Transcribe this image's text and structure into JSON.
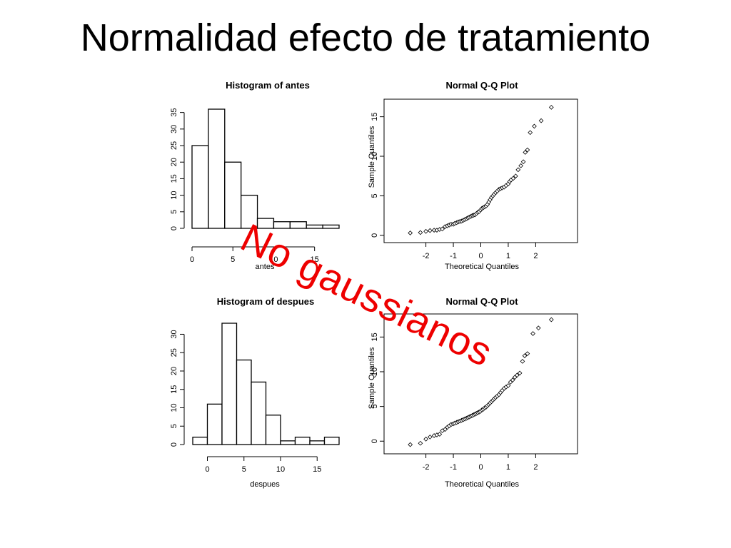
{
  "slide": {
    "title": "Normalidad efecto de tratamiento",
    "annotation": "No gaussianos",
    "annotation_color": "#ee0000"
  },
  "chart_data": [
    {
      "id": "hist_antes",
      "type": "bar",
      "title": "Histogram of antes",
      "xlabel": "antes",
      "ylabel": "",
      "bins": [
        [
          0,
          2
        ],
        [
          2,
          4
        ],
        [
          4,
          6
        ],
        [
          6,
          8
        ],
        [
          8,
          10
        ],
        [
          10,
          12
        ],
        [
          12,
          14
        ],
        [
          14,
          16
        ],
        [
          16,
          18
        ]
      ],
      "values": [
        25,
        36,
        20,
        10,
        3,
        2,
        2,
        1,
        1
      ],
      "xlim": [
        0,
        18
      ],
      "ylim": [
        0,
        36
      ],
      "xticks": [
        0,
        5,
        10,
        15
      ],
      "yticks": [
        0,
        5,
        10,
        15,
        20,
        25,
        30,
        35
      ],
      "grid": false
    },
    {
      "id": "qq_antes",
      "type": "scatter",
      "title": "Normal Q-Q Plot",
      "xlabel": "Theoretical Quantiles",
      "ylabel": "Sample Quantiles",
      "xlim": [
        -2.9,
        2.9
      ],
      "ylim": [
        -0.2,
        16.5
      ],
      "xticks": [
        -2,
        -1,
        0,
        1,
        2
      ],
      "yticks": [
        0,
        5,
        10,
        15
      ],
      "points": [
        [
          -2.57,
          0.3
        ],
        [
          -2.2,
          0.35
        ],
        [
          -2.0,
          0.5
        ],
        [
          -1.85,
          0.6
        ],
        [
          -1.7,
          0.65
        ],
        [
          -1.6,
          0.65
        ],
        [
          -1.5,
          0.75
        ],
        [
          -1.4,
          0.8
        ],
        [
          -1.3,
          1.1
        ],
        [
          -1.22,
          1.2
        ],
        [
          -1.15,
          1.3
        ],
        [
          -1.08,
          1.4
        ],
        [
          -1.0,
          1.4
        ],
        [
          -0.95,
          1.5
        ],
        [
          -0.88,
          1.6
        ],
        [
          -0.82,
          1.7
        ],
        [
          -0.76,
          1.75
        ],
        [
          -0.7,
          1.8
        ],
        [
          -0.64,
          1.9
        ],
        [
          -0.58,
          2.0
        ],
        [
          -0.52,
          2.1
        ],
        [
          -0.47,
          2.2
        ],
        [
          -0.42,
          2.3
        ],
        [
          -0.36,
          2.4
        ],
        [
          -0.31,
          2.5
        ],
        [
          -0.26,
          2.55
        ],
        [
          -0.21,
          2.6
        ],
        [
          -0.16,
          2.75
        ],
        [
          -0.11,
          2.9
        ],
        [
          -0.06,
          3.0
        ],
        [
          -0.01,
          3.2
        ],
        [
          0.04,
          3.4
        ],
        [
          0.09,
          3.5
        ],
        [
          0.14,
          3.6
        ],
        [
          0.19,
          3.7
        ],
        [
          0.24,
          3.9
        ],
        [
          0.29,
          4.2
        ],
        [
          0.34,
          4.5
        ],
        [
          0.39,
          4.8
        ],
        [
          0.44,
          5.0
        ],
        [
          0.49,
          5.2
        ],
        [
          0.54,
          5.4
        ],
        [
          0.6,
          5.6
        ],
        [
          0.66,
          5.8
        ],
        [
          0.72,
          5.9
        ],
        [
          0.78,
          6.0
        ],
        [
          0.85,
          6.1
        ],
        [
          0.92,
          6.3
        ],
        [
          1.0,
          6.5
        ],
        [
          1.05,
          6.8
        ],
        [
          1.1,
          7.0
        ],
        [
          1.18,
          7.2
        ],
        [
          1.27,
          7.5
        ],
        [
          1.36,
          8.3
        ],
        [
          1.46,
          8.8
        ],
        [
          1.55,
          9.3
        ],
        [
          1.62,
          10.5
        ],
        [
          1.7,
          10.8
        ],
        [
          1.8,
          13.0
        ],
        [
          1.95,
          13.8
        ],
        [
          2.2,
          14.5
        ],
        [
          2.57,
          16.2
        ]
      ],
      "grid": false
    },
    {
      "id": "hist_despues",
      "type": "bar",
      "title": "Histogram of despues",
      "xlabel": "despues",
      "ylabel": "",
      "bins": [
        [
          -2,
          0
        ],
        [
          0,
          2
        ],
        [
          2,
          4
        ],
        [
          4,
          6
        ],
        [
          6,
          8
        ],
        [
          8,
          10
        ],
        [
          10,
          12
        ],
        [
          12,
          14
        ],
        [
          14,
          16
        ],
        [
          16,
          18
        ]
      ],
      "values": [
        2,
        11,
        33,
        23,
        17,
        8,
        1,
        2,
        1,
        2
      ],
      "xlim": [
        -2,
        18
      ],
      "ylim": [
        0,
        33
      ],
      "xticks": [
        0,
        5,
        10,
        15
      ],
      "yticks": [
        0,
        5,
        10,
        15,
        20,
        25,
        30
      ],
      "grid": false
    },
    {
      "id": "qq_despues",
      "type": "scatter",
      "title": "Normal Q-Q Plot",
      "xlabel": "Theoretical Quantiles",
      "ylabel": "Sample Quantiles",
      "xlim": [
        -2.9,
        2.9
      ],
      "ylim": [
        -1,
        17.5
      ],
      "xticks": [
        -2,
        -1,
        0,
        1,
        2
      ],
      "yticks": [
        0,
        5,
        10,
        15
      ],
      "points": [
        [
          -2.57,
          -0.5
        ],
        [
          -2.2,
          -0.3
        ],
        [
          -2.0,
          0.3
        ],
        [
          -1.85,
          0.6
        ],
        [
          -1.7,
          0.8
        ],
        [
          -1.6,
          0.9
        ],
        [
          -1.5,
          1.0
        ],
        [
          -1.4,
          1.5
        ],
        [
          -1.3,
          1.7
        ],
        [
          -1.22,
          2.0
        ],
        [
          -1.15,
          2.2
        ],
        [
          -1.08,
          2.4
        ],
        [
          -1.0,
          2.5
        ],
        [
          -0.95,
          2.6
        ],
        [
          -0.88,
          2.7
        ],
        [
          -0.82,
          2.8
        ],
        [
          -0.76,
          2.9
        ],
        [
          -0.7,
          3.0
        ],
        [
          -0.64,
          3.1
        ],
        [
          -0.58,
          3.2
        ],
        [
          -0.52,
          3.3
        ],
        [
          -0.47,
          3.4
        ],
        [
          -0.42,
          3.5
        ],
        [
          -0.36,
          3.6
        ],
        [
          -0.31,
          3.7
        ],
        [
          -0.26,
          3.8
        ],
        [
          -0.21,
          3.9
        ],
        [
          -0.16,
          4.0
        ],
        [
          -0.11,
          4.1
        ],
        [
          -0.06,
          4.2
        ],
        [
          -0.01,
          4.3
        ],
        [
          0.04,
          4.5
        ],
        [
          0.09,
          4.6
        ],
        [
          0.14,
          4.8
        ],
        [
          0.19,
          4.9
        ],
        [
          0.24,
          5.1
        ],
        [
          0.29,
          5.3
        ],
        [
          0.34,
          5.5
        ],
        [
          0.39,
          5.7
        ],
        [
          0.44,
          5.9
        ],
        [
          0.49,
          6.1
        ],
        [
          0.54,
          6.3
        ],
        [
          0.6,
          6.5
        ],
        [
          0.66,
          6.7
        ],
        [
          0.72,
          7.0
        ],
        [
          0.78,
          7.3
        ],
        [
          0.85,
          7.6
        ],
        [
          0.92,
          7.8
        ],
        [
          1.0,
          8.0
        ],
        [
          1.08,
          8.5
        ],
        [
          1.16,
          8.8
        ],
        [
          1.24,
          9.2
        ],
        [
          1.32,
          9.5
        ],
        [
          1.42,
          9.8
        ],
        [
          1.52,
          11.5
        ],
        [
          1.6,
          12.3
        ],
        [
          1.7,
          12.6
        ],
        [
          1.9,
          15.5
        ],
        [
          2.1,
          16.3
        ],
        [
          2.57,
          17.5
        ]
      ],
      "grid": false
    }
  ]
}
